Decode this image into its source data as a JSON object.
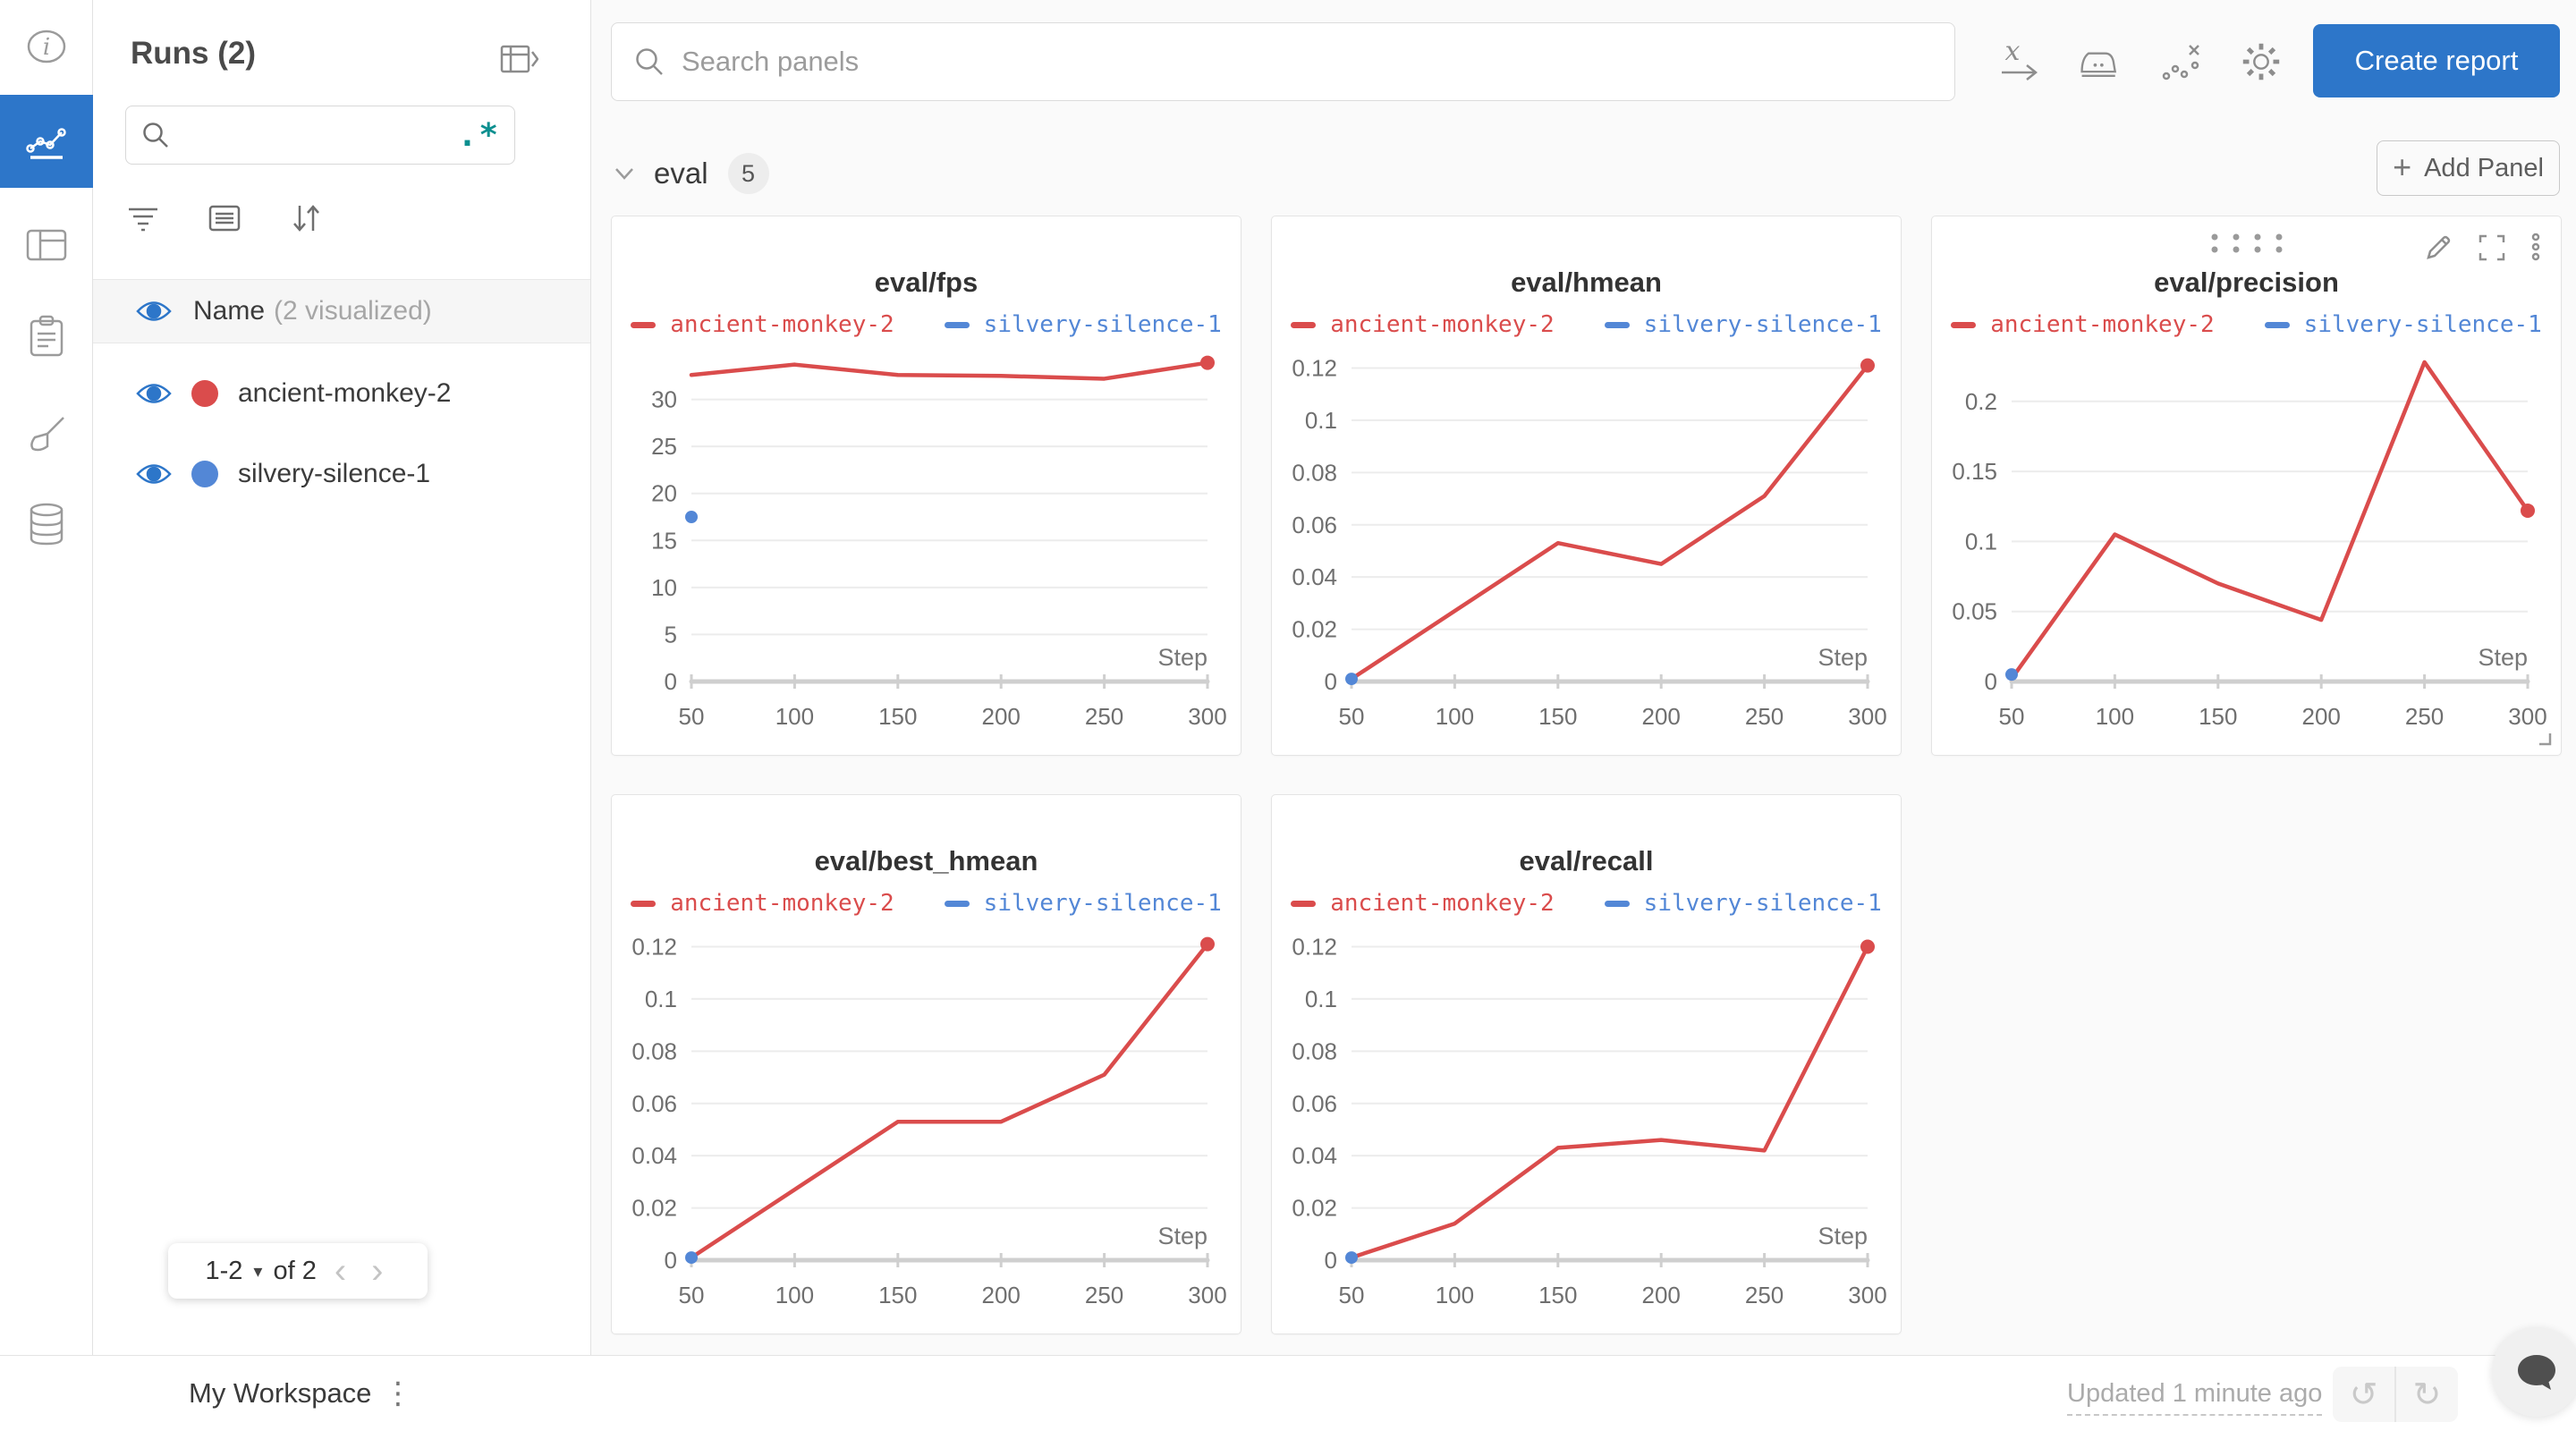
{
  "icon_rail": {
    "items": [
      {
        "icon": "info-icon",
        "active": false
      },
      {
        "icon": "line-chart-icon",
        "active": true
      },
      {
        "icon": "table-icon",
        "active": false
      },
      {
        "icon": "clipboard-icon",
        "active": false
      },
      {
        "icon": "brush-icon",
        "active": false
      },
      {
        "icon": "database-icon",
        "active": false
      }
    ],
    "active_color": "#2d76c9"
  },
  "sidebar": {
    "title": "Runs (2)",
    "search": {
      "placeholder": "",
      "regex_label": ".*",
      "regex_color": "#0c8f8f"
    },
    "columns_header": {
      "label": "Name",
      "suffix": "(2 visualized)"
    },
    "runs": [
      {
        "name": "ancient-monkey-2",
        "color": "#da4c4c"
      },
      {
        "name": "silvery-silence-1",
        "color": "#5387d6"
      }
    ],
    "pagination": {
      "range": "1-2",
      "of_label": "of 2",
      "prev": "‹",
      "next": "›"
    }
  },
  "header": {
    "search_placeholder": "Search panels",
    "create_report_label": "Create report"
  },
  "section": {
    "name": "eval",
    "count": "5",
    "add_panel_label": "Add Panel",
    "plus": "+"
  },
  "bottom_bar": {
    "workspace_label": "My Workspace",
    "updated_label": "Updated 1 minute ago",
    "undo_glyph": "↺",
    "redo_glyph": "↻"
  },
  "legend_runs": [
    {
      "name": "ancient-monkey-2",
      "color": "#da4c4c"
    },
    {
      "name": "silvery-silence-1",
      "color": "#5387d6"
    }
  ],
  "chart_data": [
    {
      "type": "line",
      "title": "eval/fps",
      "xlabel": "Step",
      "x": [
        50,
        100,
        150,
        200,
        250,
        300
      ],
      "yticks": [
        0,
        5,
        10,
        15,
        20,
        25,
        30
      ],
      "ylim": [
        0,
        35
      ],
      "grid": true,
      "legend_position": "top",
      "series": [
        {
          "name": "ancient-monkey-2",
          "color": "#da4c4c",
          "values": [
            32.6,
            33.7,
            32.6,
            32.5,
            32.2,
            33.9
          ]
        },
        {
          "name": "silvery-silence-1",
          "color": "#5387d6",
          "values": [
            17.5,
            null,
            null,
            null,
            null,
            null
          ]
        }
      ],
      "hovered": false
    },
    {
      "type": "line",
      "title": "eval/hmean",
      "xlabel": "Step",
      "x": [
        50,
        100,
        150,
        200,
        250,
        300
      ],
      "yticks": [
        0,
        0.02,
        0.04,
        0.06,
        0.08,
        0.1,
        0.12
      ],
      "ylim": [
        0,
        0.126
      ],
      "grid": true,
      "legend_position": "top",
      "series": [
        {
          "name": "ancient-monkey-2",
          "color": "#da4c4c",
          "values": [
            0.001,
            0.027,
            0.053,
            0.045,
            0.071,
            0.121
          ]
        },
        {
          "name": "silvery-silence-1",
          "color": "#5387d6",
          "values": [
            0.001,
            null,
            null,
            null,
            null,
            null
          ]
        }
      ],
      "hovered": false
    },
    {
      "type": "line",
      "title": "eval/precision",
      "xlabel": "Step",
      "x": [
        50,
        100,
        150,
        200,
        250,
        300
      ],
      "yticks": [
        0,
        0.05,
        0.1,
        0.15,
        0.2
      ],
      "ylim": [
        0,
        0.235
      ],
      "grid": true,
      "legend_position": "top",
      "series": [
        {
          "name": "ancient-monkey-2",
          "color": "#da4c4c",
          "values": [
            0.002,
            0.105,
            0.07,
            0.044,
            0.228,
            0.122
          ]
        },
        {
          "name": "silvery-silence-1",
          "color": "#5387d6",
          "values": [
            0.005,
            null,
            null,
            null,
            null,
            null
          ]
        }
      ],
      "hovered": true
    },
    {
      "type": "line",
      "title": "eval/best_hmean",
      "xlabel": "Step",
      "x": [
        50,
        100,
        150,
        200,
        250,
        300
      ],
      "yticks": [
        0,
        0.02,
        0.04,
        0.06,
        0.08,
        0.1,
        0.12
      ],
      "ylim": [
        0,
        0.126
      ],
      "grid": true,
      "legend_position": "top",
      "series": [
        {
          "name": "ancient-monkey-2",
          "color": "#da4c4c",
          "values": [
            0.001,
            0.027,
            0.053,
            0.053,
            0.071,
            0.121
          ]
        },
        {
          "name": "silvery-silence-1",
          "color": "#5387d6",
          "values": [
            0.001,
            null,
            null,
            null,
            null,
            null
          ]
        }
      ],
      "hovered": false
    },
    {
      "type": "line",
      "title": "eval/recall",
      "xlabel": "Step",
      "x": [
        50,
        100,
        150,
        200,
        250,
        300
      ],
      "yticks": [
        0,
        0.02,
        0.04,
        0.06,
        0.08,
        0.1,
        0.12
      ],
      "ylim": [
        0,
        0.126
      ],
      "grid": true,
      "legend_position": "top",
      "series": [
        {
          "name": "ancient-monkey-2",
          "color": "#da4c4c",
          "values": [
            0.001,
            0.014,
            0.043,
            0.046,
            0.042,
            0.12
          ]
        },
        {
          "name": "silvery-silence-1",
          "color": "#5387d6",
          "values": [
            0.001,
            null,
            null,
            null,
            null,
            null
          ]
        }
      ],
      "hovered": false
    }
  ]
}
